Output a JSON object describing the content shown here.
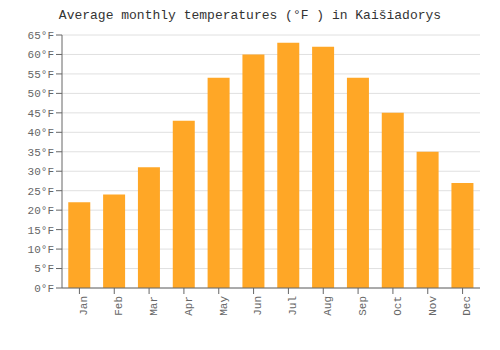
{
  "chart_data": {
    "type": "bar",
    "title": "Average monthly temperatures (°F ) in Kaišiadorys",
    "categories": [
      "Jan",
      "Feb",
      "Mar",
      "Apr",
      "May",
      "Jun",
      "Jul",
      "Aug",
      "Sep",
      "Oct",
      "Nov",
      "Dec"
    ],
    "values": [
      22,
      24,
      31,
      43,
      54,
      60,
      63,
      62,
      54,
      45,
      35,
      27
    ],
    "color": "#FFA726",
    "ylim": [
      0,
      65
    ],
    "yticks": [
      {
        "value": 0,
        "label": "0°F"
      },
      {
        "value": 5,
        "label": "5°F"
      },
      {
        "value": 10,
        "label": "10°F"
      },
      {
        "value": 15,
        "label": "15°F"
      },
      {
        "value": 20,
        "label": "20°F"
      },
      {
        "value": 25,
        "label": "25°F"
      },
      {
        "value": 30,
        "label": "30°F"
      },
      {
        "value": 35,
        "label": "35°F"
      },
      {
        "value": 40,
        "label": "40°F"
      },
      {
        "value": 45,
        "label": "45°F"
      },
      {
        "value": 50,
        "label": "50°F"
      },
      {
        "value": 55,
        "label": "55°F"
      },
      {
        "value": 60,
        "label": "60°F"
      },
      {
        "value": 65,
        "label": "65°F"
      }
    ],
    "grid": true
  }
}
